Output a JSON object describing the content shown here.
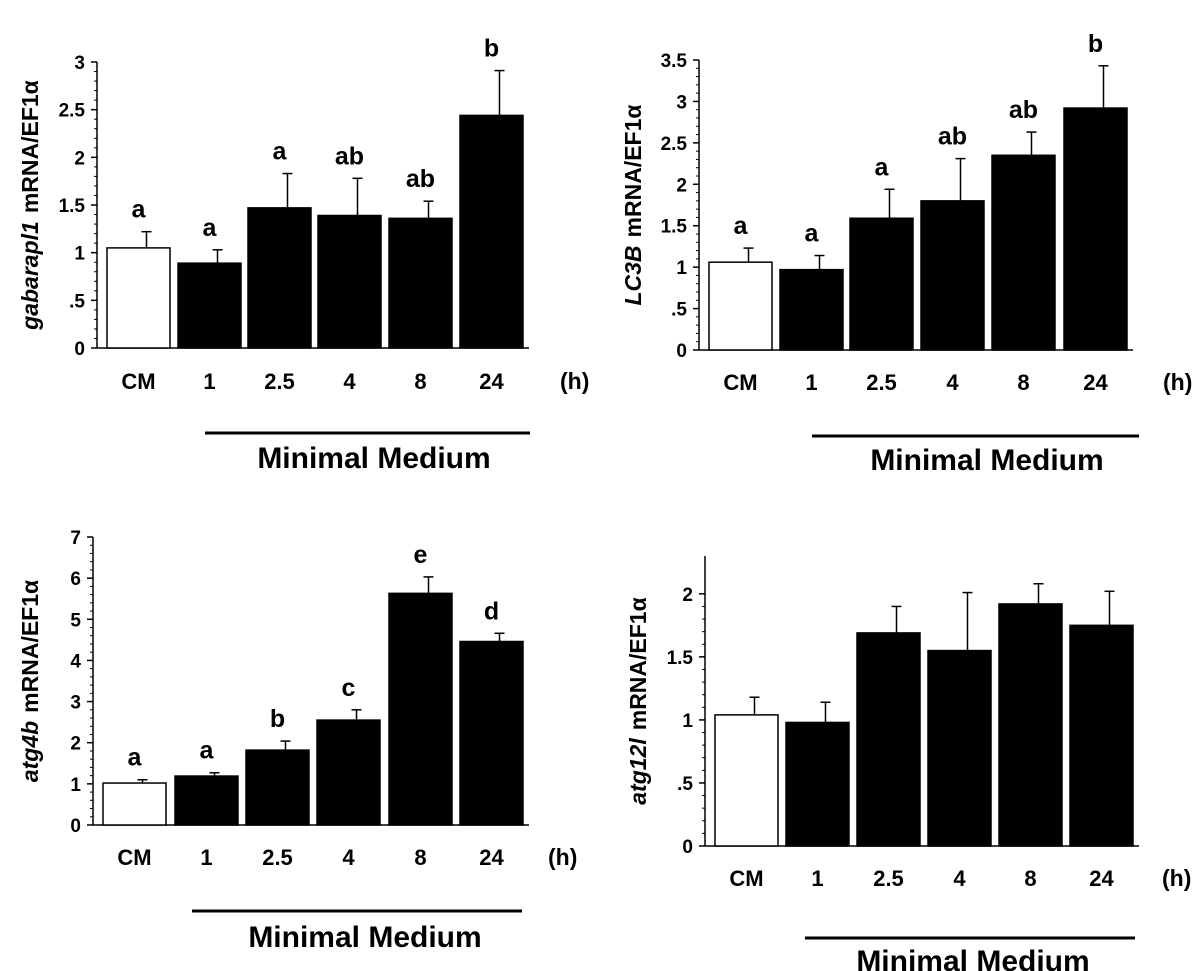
{
  "chart_data": [
    {
      "type": "bar",
      "categories": [
        "CM",
        "1",
        "2.5",
        "4",
        "8",
        "24"
      ],
      "values": [
        1.05,
        0.89,
        1.47,
        1.39,
        1.36,
        2.44
      ],
      "errors": [
        0.17,
        0.14,
        0.36,
        0.39,
        0.18,
        0.47
      ],
      "letters": [
        "a",
        "a",
        "a",
        "ab",
        "ab",
        "b"
      ],
      "ylim": [
        0,
        3
      ],
      "yticks": [
        "0",
        ".5",
        "1",
        "1.5",
        "2",
        "2.5",
        "3"
      ],
      "ytick_values": [
        0,
        0.5,
        1,
        1.5,
        2,
        2.5,
        3
      ],
      "ylabel_gene": "gabarapl1",
      "ylabel_rest": "mRNA/EF1α",
      "unit": "(h)",
      "group_label": "Minimal Medium",
      "bar_colors": [
        "#ffffff",
        "#000000",
        "#000000",
        "#000000",
        "#000000",
        "#000000"
      ]
    },
    {
      "type": "bar",
      "categories": [
        "CM",
        "1",
        "2.5",
        "4",
        "8",
        "24"
      ],
      "values": [
        1.06,
        0.97,
        1.59,
        1.8,
        2.35,
        2.92
      ],
      "errors": [
        0.17,
        0.17,
        0.35,
        0.51,
        0.28,
        0.51
      ],
      "letters": [
        "a",
        "a",
        "a",
        "ab",
        "ab",
        "b"
      ],
      "ylim": [
        0,
        3.5
      ],
      "yticks": [
        "0",
        ".5",
        "1",
        "1.5",
        "2",
        "2.5",
        "3",
        "3.5"
      ],
      "ytick_values": [
        0,
        0.5,
        1,
        1.5,
        2,
        2.5,
        3,
        3.5
      ],
      "ylabel_gene": "LC3B",
      "ylabel_rest": "mRNA/EF1α",
      "unit": "(h)",
      "group_label": "Minimal Medium",
      "bar_colors": [
        "#ffffff",
        "#000000",
        "#000000",
        "#000000",
        "#000000",
        "#000000"
      ]
    },
    {
      "type": "bar",
      "categories": [
        "CM",
        "1",
        "2.5",
        "4",
        "8",
        "24"
      ],
      "values": [
        1.02,
        1.19,
        1.82,
        2.55,
        5.63,
        4.46
      ],
      "errors": [
        0.08,
        0.08,
        0.22,
        0.25,
        0.4,
        0.2
      ],
      "letters": [
        "a",
        "a",
        "b",
        "c",
        "e",
        "d"
      ],
      "ylim": [
        0,
        7
      ],
      "yticks": [
        "0",
        "1",
        "2",
        "3",
        "4",
        "5",
        "6",
        "7"
      ],
      "ytick_values": [
        0,
        1,
        2,
        3,
        4,
        5,
        6,
        7
      ],
      "ylabel_gene": "atg4b",
      "ylabel_rest": "mRNA/EF1α",
      "unit": "(h)",
      "group_label": "Minimal Medium",
      "bar_colors": [
        "#ffffff",
        "#000000",
        "#000000",
        "#000000",
        "#000000",
        "#000000"
      ]
    },
    {
      "type": "bar",
      "categories": [
        "CM",
        "1",
        "2.5",
        "4",
        "8",
        "24"
      ],
      "values": [
        1.04,
        0.98,
        1.69,
        1.55,
        1.92,
        1.75
      ],
      "errors": [
        0.14,
        0.16,
        0.21,
        0.46,
        0.16,
        0.27
      ],
      "letters": [
        "",
        "",
        "",
        "",
        "",
        ""
      ],
      "ylim": [
        0,
        2.3
      ],
      "yticks": [
        "0",
        ".5",
        "1",
        "1.5",
        "2"
      ],
      "ytick_values": [
        0,
        0.5,
        1,
        1.5,
        2
      ],
      "ylabel_gene": "atg12l",
      "ylabel_rest": "mRNA/EF1α",
      "unit": "(h)",
      "group_label": "Minimal Medium",
      "bar_colors": [
        "#ffffff",
        "#000000",
        "#000000",
        "#000000",
        "#000000",
        "#000000"
      ]
    }
  ]
}
